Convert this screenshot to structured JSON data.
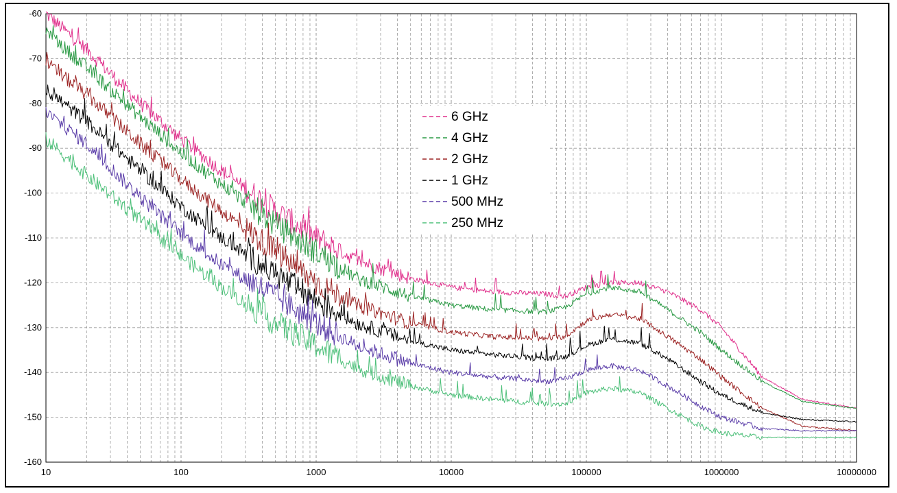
{
  "chart_data": {
    "type": "line",
    "title": "",
    "xlabel": "",
    "ylabel": "",
    "x_scale": "log",
    "xlim": [
      10,
      10000000
    ],
    "ylim": [
      -160,
      -60
    ],
    "grid": true,
    "legend_position": "center",
    "x_ticks": [
      10,
      100,
      1000,
      10000,
      100000,
      1000000,
      10000000
    ],
    "x_tick_labels": [
      "10",
      "100",
      "1000",
      "10000",
      "100000",
      "1000000",
      "10000000"
    ],
    "y_ticks": [
      -60,
      -70,
      -80,
      -90,
      -100,
      -110,
      -120,
      -130,
      -140,
      -150,
      -160
    ],
    "y_tick_labels": [
      "-60",
      "-70",
      "-80",
      "-90",
      "-100",
      "-110",
      "-120",
      "-130",
      "-140",
      "-150",
      "-160"
    ],
    "series": [
      {
        "name": "6 GHz",
        "color": "#e0308c",
        "x": [
          10,
          20,
          50,
          100,
          200,
          500,
          1000,
          2000,
          5000,
          10000,
          20000,
          50000,
          70000,
          100000,
          150000,
          250000,
          400000,
          700000,
          1000000,
          2000000,
          4000000,
          10000000
        ],
        "y": [
          -60,
          -68,
          -80,
          -88,
          -95,
          -104,
          -110,
          -115,
          -119,
          -121,
          -122,
          -122.5,
          -123,
          -121,
          -120,
          -120,
          -122,
          -126,
          -130,
          -141,
          -146,
          -148
        ]
      },
      {
        "name": "4 GHz",
        "color": "#2a9a44",
        "x": [
          10,
          20,
          50,
          100,
          200,
          500,
          1000,
          2000,
          5000,
          10000,
          20000,
          50000,
          70000,
          100000,
          150000,
          250000,
          400000,
          700000,
          1000000,
          2000000,
          4000000,
          10000000
        ],
        "y": [
          -64,
          -72,
          -83,
          -91,
          -98,
          -107,
          -113,
          -119,
          -123,
          -125,
          -126,
          -126.5,
          -125.5,
          -122.5,
          -121,
          -122,
          -126,
          -131,
          -135,
          -142,
          -146.5,
          -148
        ]
      },
      {
        "name": "2 GHz",
        "color": "#9c2424",
        "x": [
          10,
          20,
          50,
          100,
          200,
          500,
          1000,
          2000,
          5000,
          10000,
          20000,
          50000,
          70000,
          100000,
          150000,
          250000,
          400000,
          700000,
          1000000,
          2000000,
          4000000,
          10000000
        ],
        "y": [
          -71,
          -78,
          -89,
          -97,
          -104,
          -113,
          -120,
          -125,
          -129,
          -131,
          -132,
          -132.5,
          -132,
          -128.5,
          -127,
          -128,
          -132,
          -137,
          -141,
          -148,
          -152,
          -153
        ]
      },
      {
        "name": "1 GHz",
        "color": "#000000",
        "x": [
          10,
          20,
          50,
          100,
          200,
          500,
          1000,
          2000,
          5000,
          10000,
          20000,
          50000,
          70000,
          100000,
          150000,
          250000,
          400000,
          700000,
          1000000,
          2000000,
          4000000,
          10000000
        ],
        "y": [
          -77,
          -84,
          -95,
          -103,
          -110,
          -118,
          -124,
          -129,
          -133,
          -135,
          -136,
          -137,
          -136.5,
          -134,
          -132.5,
          -133.5,
          -137,
          -142,
          -145,
          -149,
          -150.5,
          -151
        ]
      },
      {
        "name": "500 MHz",
        "color": "#5a3ca8",
        "x": [
          10,
          20,
          50,
          100,
          200,
          500,
          1000,
          2000,
          5000,
          10000,
          20000,
          50000,
          70000,
          100000,
          150000,
          250000,
          400000,
          700000,
          1000000,
          2000000,
          4000000,
          10000000
        ],
        "y": [
          -82,
          -89,
          -101,
          -109,
          -116,
          -123,
          -129,
          -134,
          -138,
          -140,
          -141,
          -142,
          -141.5,
          -139.5,
          -138.5,
          -139.5,
          -143,
          -147.5,
          -150,
          -152.5,
          -153,
          -153
        ]
      },
      {
        "name": "250 MHz",
        "color": "#4ec07a",
        "x": [
          10,
          20,
          50,
          100,
          200,
          500,
          1000,
          2000,
          5000,
          10000,
          20000,
          50000,
          70000,
          100000,
          150000,
          250000,
          400000,
          700000,
          1000000,
          2000000,
          4000000,
          10000000
        ],
        "y": [
          -88,
          -96,
          -106,
          -114,
          -121,
          -129,
          -134,
          -139,
          -143,
          -145,
          -146,
          -147,
          -147,
          -144.5,
          -143.5,
          -144.5,
          -148,
          -152,
          -153.5,
          -154.5,
          -154.5,
          -154.5
        ]
      }
    ]
  }
}
